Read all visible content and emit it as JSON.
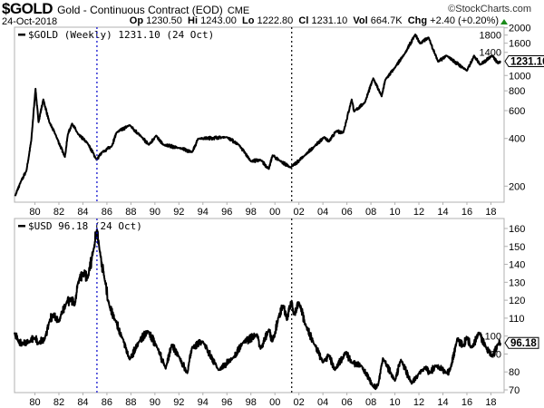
{
  "header": {
    "symbol": "$GOLD",
    "name": "Gold - Continuous Contract (EOD)",
    "exchange": "CME",
    "brand": "©StockCharts.com",
    "date": "24-Oct-2018",
    "op_label": "Op",
    "op": "1230.50",
    "hi_label": "Hi",
    "hi": "1243.00",
    "lo_label": "Lo",
    "lo": "1222.80",
    "cl_label": "Cl",
    "cl": "1231.10",
    "vol_label": "Vol",
    "vol": "664.7K",
    "chg_label": "Chg",
    "chg": "+2.40 (+0.20%)"
  },
  "colors": {
    "line": "#000000",
    "marker1": "#0000cc",
    "marker2": "#000000",
    "up": "#1a8a1a",
    "frame": "#b0b0b0"
  },
  "chart_data": [
    {
      "type": "line",
      "title": "$GOLD (Weekly) 1231.10 (24 Oct)",
      "last_value": "1231.10",
      "yscale": "log",
      "ylim": [
        160,
        2000
      ],
      "yticks": [
        200,
        400,
        600,
        800,
        1000,
        1400,
        1600,
        1800,
        2000
      ],
      "xlim": [
        1978.3,
        2019.1
      ],
      "xticks": [
        "80",
        "82",
        "84",
        "86",
        "88",
        "90",
        "92",
        "94",
        "96",
        "98",
        "00",
        "02",
        "04",
        "06",
        "08",
        "10",
        "12",
        "14",
        "16",
        "18"
      ],
      "points": [
        [
          1978.35,
          173
        ],
        [
          1978.8,
          211
        ],
        [
          1979.3,
          251
        ],
        [
          1979.7,
          390
        ],
        [
          1980.05,
          824
        ],
        [
          1980.3,
          507
        ],
        [
          1980.7,
          706
        ],
        [
          1981.2,
          507
        ],
        [
          1981.7,
          426
        ],
        [
          1982.5,
          306
        ],
        [
          1982.75,
          426
        ],
        [
          1983.1,
          497
        ],
        [
          1983.6,
          426
        ],
        [
          1984.4,
          373
        ],
        [
          1985.15,
          293
        ],
        [
          1985.6,
          328
        ],
        [
          1986.4,
          357
        ],
        [
          1986.8,
          436
        ],
        [
          1987.9,
          486
        ],
        [
          1988.9,
          408
        ],
        [
          1989.5,
          365
        ],
        [
          1990.1,
          417
        ],
        [
          1990.7,
          365
        ],
        [
          1992.0,
          349
        ],
        [
          1993.1,
          328
        ],
        [
          1993.6,
          399
        ],
        [
          1996.0,
          408
        ],
        [
          1997.0,
          365
        ],
        [
          1998.0,
          287
        ],
        [
          1998.8,
          293
        ],
        [
          1999.5,
          257
        ],
        [
          1999.8,
          313
        ],
        [
          2000.4,
          290
        ],
        [
          2001.3,
          262
        ],
        [
          2002.5,
          313
        ],
        [
          2003.3,
          357
        ],
        [
          2004.1,
          408
        ],
        [
          2004.5,
          382
        ],
        [
          2005.1,
          445
        ],
        [
          2005.7,
          436
        ],
        [
          2006.4,
          706
        ],
        [
          2006.6,
          592
        ],
        [
          2007.5,
          676
        ],
        [
          2008.2,
          961
        ],
        [
          2008.9,
          738
        ],
        [
          2009.2,
          939
        ],
        [
          2010.0,
          1120
        ],
        [
          2010.8,
          1365
        ],
        [
          2011.7,
          1816
        ],
        [
          2012.1,
          1592
        ],
        [
          2012.8,
          1739
        ],
        [
          2013.6,
          1222
        ],
        [
          2014.3,
          1336
        ],
        [
          2016.0,
          1072
        ],
        [
          2016.6,
          1336
        ],
        [
          2017.1,
          1170
        ],
        [
          2018.1,
          1336
        ],
        [
          2018.6,
          1190
        ],
        [
          2018.8,
          1231.1
        ]
      ]
    },
    {
      "type": "line",
      "title": "$USD 96.18 (24 Oct)",
      "last_value": "96.18",
      "yscale": "linear",
      "ylim": [
        70,
        160
      ],
      "yticks": [
        70,
        80,
        90,
        100,
        110,
        120,
        130,
        140,
        150,
        160
      ],
      "xlim": [
        1978.3,
        2019.1
      ],
      "xticks": [
        "80",
        "82",
        "84",
        "86",
        "88",
        "90",
        "92",
        "94",
        "96",
        "98",
        "00",
        "02",
        "04",
        "06",
        "08",
        "10",
        "12",
        "14",
        "16",
        "18"
      ],
      "points": [
        [
          1978.3,
          102
        ],
        [
          1978.6,
          97
        ],
        [
          1979.0,
          96
        ],
        [
          1979.5,
          97
        ],
        [
          1980.0,
          99
        ],
        [
          1980.3,
          96
        ],
        [
          1980.8,
          98
        ],
        [
          1981.2,
          108
        ],
        [
          1981.5,
          112
        ],
        [
          1982.0,
          108
        ],
        [
          1982.6,
          118
        ],
        [
          1983.0,
          121
        ],
        [
          1983.3,
          117
        ],
        [
          1983.6,
          129.8
        ],
        [
          1984.0,
          134.9
        ],
        [
          1984.4,
          132.3
        ],
        [
          1984.9,
          149
        ],
        [
          1985.17,
          159.3
        ],
        [
          1985.4,
          147.5
        ],
        [
          1985.8,
          132
        ],
        [
          1986.2,
          117
        ],
        [
          1986.7,
          109
        ],
        [
          1987.3,
          98.8
        ],
        [
          1987.9,
          86.9
        ],
        [
          1988.7,
          97
        ],
        [
          1989.4,
          102.9
        ],
        [
          1990.2,
          93.6
        ],
        [
          1990.9,
          81.8
        ],
        [
          1991.4,
          95.3
        ],
        [
          1992.0,
          88.5
        ],
        [
          1992.7,
          79.3
        ],
        [
          1993.1,
          93.8
        ],
        [
          1994.0,
          97
        ],
        [
          1995.3,
          81
        ],
        [
          1996.5,
          87.7
        ],
        [
          1997.3,
          96.1
        ],
        [
          1998.5,
          101.1
        ],
        [
          1998.8,
          92.8
        ],
        [
          1999.5,
          103.7
        ],
        [
          1999.8,
          97
        ],
        [
          2000.3,
          110.5
        ],
        [
          2000.7,
          117
        ],
        [
          2001.0,
          108.9
        ],
        [
          2001.4,
          119.7
        ],
        [
          2001.6,
          112
        ],
        [
          2002.0,
          118.9
        ],
        [
          2002.6,
          105.4
        ],
        [
          2003.3,
          95.3
        ],
        [
          2004.0,
          85.2
        ],
        [
          2004.5,
          89.4
        ],
        [
          2005.0,
          81
        ],
        [
          2005.9,
          91.1
        ],
        [
          2006.4,
          85.2
        ],
        [
          2007.2,
          83.5
        ],
        [
          2008.2,
          71.7
        ],
        [
          2008.6,
          72.5
        ],
        [
          2009.0,
          87.7
        ],
        [
          2010.0,
          75
        ],
        [
          2010.5,
          86.9
        ],
        [
          2011.4,
          73.4
        ],
        [
          2012.0,
          79.3
        ],
        [
          2012.5,
          82.6
        ],
        [
          2012.9,
          79.3
        ],
        [
          2013.4,
          83.5
        ],
        [
          2014.3,
          79.3
        ],
        [
          2014.6,
          81
        ],
        [
          2015.2,
          98.7
        ],
        [
          2015.7,
          94.4
        ],
        [
          2016.0,
          99.5
        ],
        [
          2016.4,
          93.6
        ],
        [
          2017.0,
          102
        ],
        [
          2017.6,
          93.6
        ],
        [
          2018.1,
          88.5
        ],
        [
          2018.6,
          95.3
        ],
        [
          2018.8,
          96.18
        ]
      ]
    }
  ],
  "markers": [
    {
      "year": 1985.17,
      "color": "blue"
    },
    {
      "year": 2001.4,
      "color": "black"
    }
  ]
}
